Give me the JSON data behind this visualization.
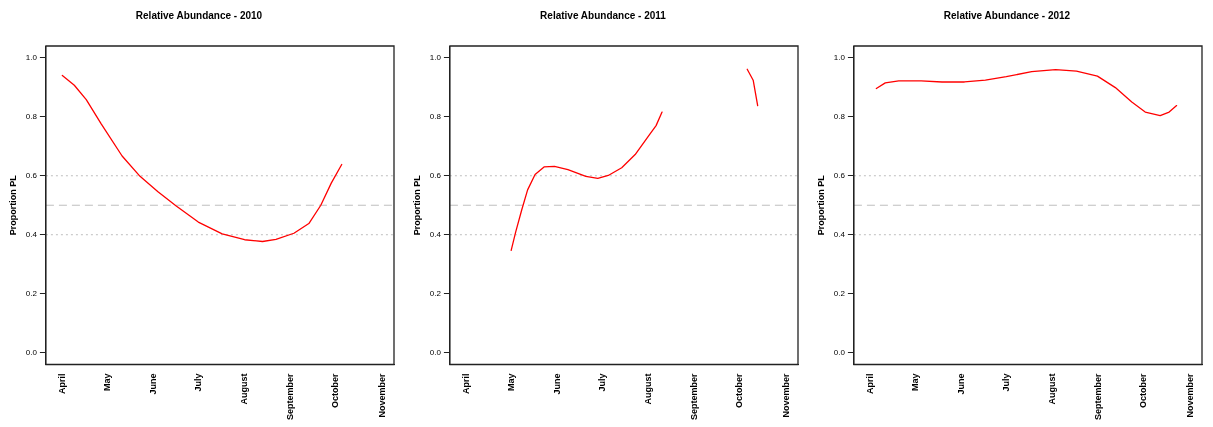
{
  "chart_data": [
    {
      "type": "line",
      "title": "Relative Abundance - 2010",
      "ylabel": "Proportion PL",
      "color": "#ff0000",
      "marker": "none",
      "x": [
        "--04-01",
        "--04-09",
        "--04-17",
        "--04-27",
        "--05-11",
        "--05-23",
        "--06-04",
        "--06-16",
        "--07-01",
        "--07-17",
        "--08-01",
        "--08-13",
        "--08-22",
        "--09-03",
        "--09-13",
        "--09-21",
        "--09-28",
        "--10-05"
      ],
      "values": [
        0.94,
        0.907,
        0.858,
        0.776,
        0.667,
        0.598,
        0.546,
        0.498,
        0.443,
        0.403,
        0.383,
        0.377,
        0.384,
        0.405,
        0.438,
        0.5,
        0.575,
        0.638
      ],
      "xlim": [
        "--03-21",
        "--11-09"
      ],
      "xticks": [
        {
          "value": "--04-01",
          "label": "April"
        },
        {
          "value": "--05-01",
          "label": "May"
        },
        {
          "value": "--06-01",
          "label": "June"
        },
        {
          "value": "--07-01",
          "label": "July"
        },
        {
          "value": "--08-01",
          "label": "August"
        },
        {
          "value": "--09-01",
          "label": "September"
        },
        {
          "value": "--10-01",
          "label": "October"
        },
        {
          "value": "--11-01",
          "label": "November"
        }
      ],
      "ylim": [
        -0.04,
        1.04
      ],
      "yticks": [
        {
          "value": 0,
          "label": "0.0"
        },
        {
          "value": 0.2,
          "label": "0.2"
        },
        {
          "value": 0.4,
          "label": "0.4"
        },
        {
          "value": 0.6,
          "label": "0.6"
        },
        {
          "value": 0.8,
          "label": "0.8"
        },
        {
          "value": 1,
          "label": "1.0"
        }
      ],
      "ref_lines": [
        {
          "axis": "y",
          "value": 0.4,
          "color": "#bebebe",
          "line_style": "dotted"
        },
        {
          "axis": "y",
          "value": 0.5,
          "color": "#bebebe",
          "line_style": "dashed"
        },
        {
          "axis": "y",
          "value": 0.6,
          "color": "#bebebe",
          "line_style": "dotted"
        }
      ]
    },
    {
      "type": "line",
      "title": "Relative Abundance - 2011",
      "ylabel": "Proportion PL",
      "color": "#ff0000",
      "marker": "none",
      "x": [
        "--05-01",
        "--05-04",
        "--05-08",
        "--05-12",
        "--05-17",
        "--05-23",
        "--05-30",
        "--06-08",
        "--06-20",
        "--06-28",
        "--07-05",
        "--07-14",
        "--07-23",
        "--08-01",
        "--08-06",
        "--08-10",
        "--09-01",
        "--10-06",
        "--10-10",
        "--10-13"
      ],
      "values": [
        0.347,
        0.409,
        0.483,
        0.552,
        0.604,
        0.63,
        0.632,
        0.621,
        0.598,
        0.591,
        0.601,
        0.627,
        0.672,
        0.735,
        0.77,
        0.816,
        null,
        0.961,
        0.924,
        0.838
      ],
      "xlim": [
        "--03-21",
        "--11-09"
      ],
      "xticks": [
        {
          "value": "--04-01",
          "label": "April"
        },
        {
          "value": "--05-01",
          "label": "May"
        },
        {
          "value": "--06-01",
          "label": "June"
        },
        {
          "value": "--07-01",
          "label": "July"
        },
        {
          "value": "--08-01",
          "label": "August"
        },
        {
          "value": "--09-01",
          "label": "September"
        },
        {
          "value": "--10-01",
          "label": "October"
        },
        {
          "value": "--11-01",
          "label": "November"
        }
      ],
      "ylim": [
        -0.04,
        1.04
      ],
      "yticks": [
        {
          "value": 0,
          "label": "0.0"
        },
        {
          "value": 0.2,
          "label": "0.2"
        },
        {
          "value": 0.4,
          "label": "0.4"
        },
        {
          "value": 0.6,
          "label": "0.6"
        },
        {
          "value": 0.8,
          "label": "0.8"
        },
        {
          "value": 1,
          "label": "1.0"
        }
      ],
      "ref_lines": [
        {
          "axis": "y",
          "value": 0.4,
          "color": "#bebebe",
          "line_style": "dotted"
        },
        {
          "axis": "y",
          "value": 0.5,
          "color": "#bebebe",
          "line_style": "dashed"
        },
        {
          "axis": "y",
          "value": 0.6,
          "color": "#bebebe",
          "line_style": "dotted"
        }
      ]
    },
    {
      "type": "line",
      "title": "Relative Abundance - 2012",
      "ylabel": "Proportion PL",
      "color": "#ff0000",
      "marker": "none",
      "x": [
        "--04-05",
        "--04-11",
        "--04-20",
        "--05-05",
        "--05-19",
        "--06-03",
        "--06-17",
        "--07-01",
        "--07-18",
        "--08-03",
        "--08-17",
        "--08-31",
        "--09-12",
        "--09-23",
        "--10-02",
        "--10-12",
        "--10-18",
        "--10-23"
      ],
      "values": [
        0.896,
        0.915,
        0.922,
        0.922,
        0.918,
        0.918,
        0.924,
        0.936,
        0.953,
        0.96,
        0.955,
        0.938,
        0.899,
        0.85,
        0.816,
        0.804,
        0.816,
        0.838
      ],
      "xlim": [
        "--03-21",
        "--11-09"
      ],
      "xticks": [
        {
          "value": "--04-01",
          "label": "April"
        },
        {
          "value": "--05-01",
          "label": "May"
        },
        {
          "value": "--06-01",
          "label": "June"
        },
        {
          "value": "--07-01",
          "label": "July"
        },
        {
          "value": "--08-01",
          "label": "August"
        },
        {
          "value": "--09-01",
          "label": "September"
        },
        {
          "value": "--10-01",
          "label": "October"
        },
        {
          "value": "--11-01",
          "label": "November"
        }
      ],
      "ylim": [
        -0.04,
        1.04
      ],
      "yticks": [
        {
          "value": 0,
          "label": "0.0"
        },
        {
          "value": 0.2,
          "label": "0.2"
        },
        {
          "value": 0.4,
          "label": "0.4"
        },
        {
          "value": 0.6,
          "label": "0.6"
        },
        {
          "value": 0.8,
          "label": "0.8"
        },
        {
          "value": 1,
          "label": "1.0"
        }
      ],
      "ref_lines": [
        {
          "axis": "y",
          "value": 0.4,
          "color": "#bebebe",
          "line_style": "dotted"
        },
        {
          "axis": "y",
          "value": 0.5,
          "color": "#bebebe",
          "line_style": "dashed"
        },
        {
          "axis": "y",
          "value": 0.6,
          "color": "#bebebe",
          "line_style": "dotted"
        }
      ]
    }
  ]
}
